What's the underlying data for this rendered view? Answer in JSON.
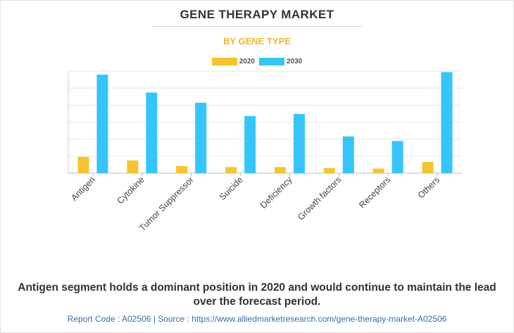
{
  "page": {
    "title": "GENE THERAPY MARKET",
    "subtitle": "BY GENE TYPE",
    "takeaway": "Antigen segment holds a dominant position in 2020 and would continue to maintain the lead over the forecast period.",
    "footer": "Report Code : A02506  |  Source : https://www.alliedmarketresearch.com/gene-therapy-market-A02506"
  },
  "colors": {
    "series_2020": "#f5c431",
    "series_2030": "#36c5fb",
    "title": "#333333",
    "subtitle": "#f7b52c",
    "footer": "#3a6ea5",
    "grid": "#e6e6e6"
  },
  "chart_data": {
    "type": "bar",
    "title": "GENE THERAPY MARKET",
    "subtitle": "BY GENE TYPE",
    "categories": [
      "Antigen",
      "Cytokine",
      "Tumor Suppressor",
      "Suicide",
      "Deficiency",
      "Growth factors",
      "Receptors",
      "Others"
    ],
    "series": [
      {
        "name": "2020",
        "values": [
          16,
          12.5,
          7,
          6,
          6,
          5,
          4.5,
          11
        ]
      },
      {
        "name": "2030",
        "values": [
          96.5,
          79,
          69,
          56,
          58,
          36,
          31.5,
          99
        ]
      }
    ],
    "xlabel": "",
    "ylabel": "",
    "ylim": [
      0,
      100
    ],
    "y_ticks_shown": false,
    "grid": true,
    "legend_position": "top-center"
  }
}
